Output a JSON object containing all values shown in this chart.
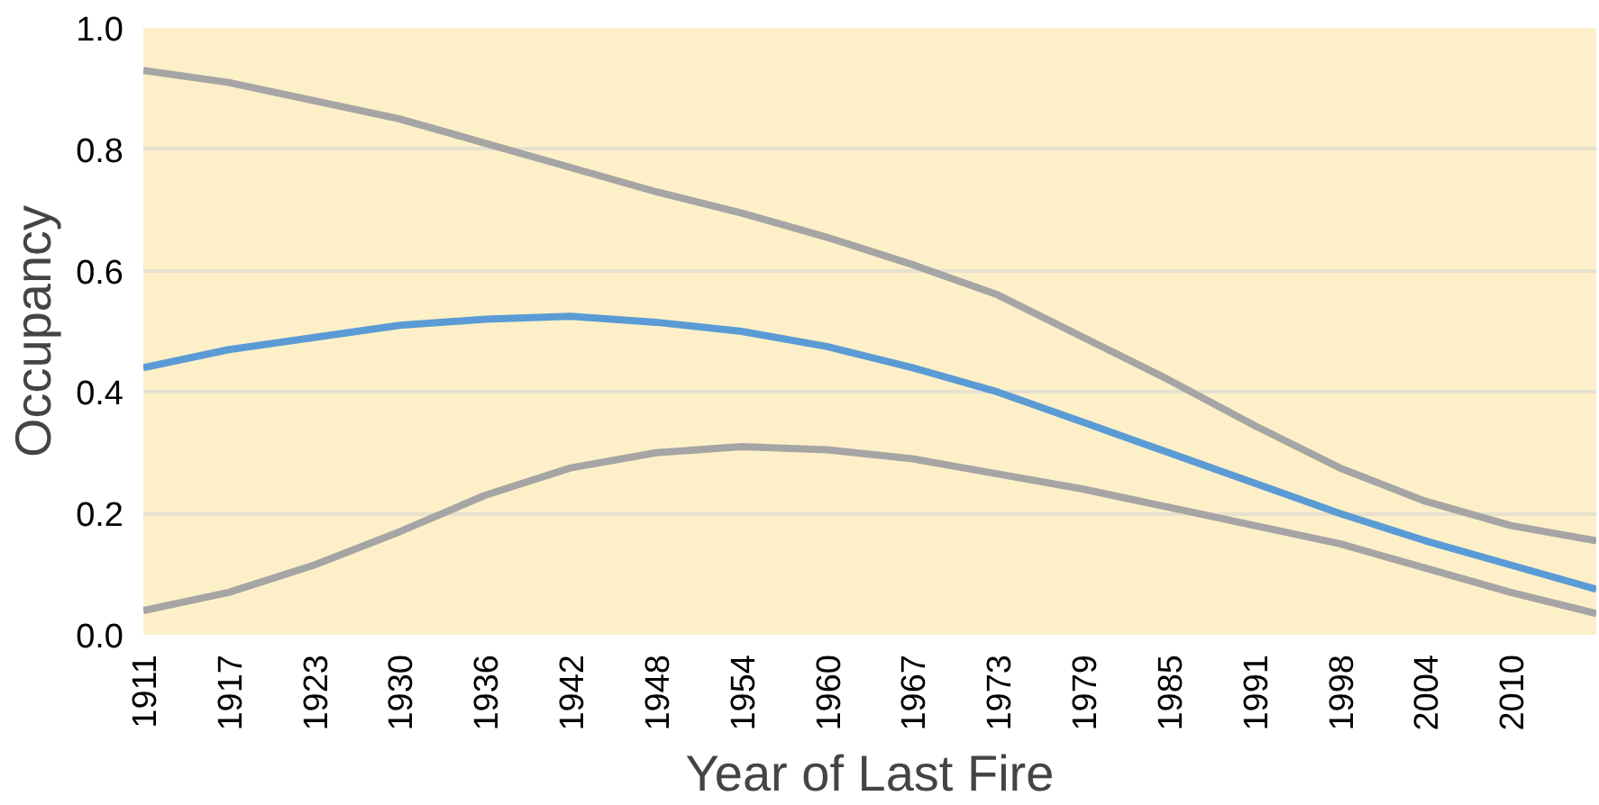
{
  "chart_data": {
    "type": "line",
    "xlabel": "Year of Last Fire",
    "ylabel": "Occupancy",
    "categories": [
      "1911",
      "1917",
      "1923",
      "1930",
      "1936",
      "1942",
      "1948",
      "1954",
      "1960",
      "1967",
      "1973",
      "1979",
      "1985",
      "1991",
      "1998",
      "2004",
      "2010",
      null
    ],
    "series": [
      {
        "color": "#a5a5a5",
        "values": [
          0.93,
          0.91,
          0.88,
          0.85,
          0.81,
          0.77,
          0.73,
          0.695,
          0.655,
          0.61,
          0.56,
          0.49,
          0.42,
          0.345,
          0.275,
          0.22,
          0.18,
          0.155
        ]
      },
      {
        "color": "#a5a5a5",
        "values": [
          0.04,
          0.07,
          0.115,
          0.17,
          0.23,
          0.275,
          0.3,
          0.31,
          0.305,
          0.29,
          0.265,
          0.24,
          0.21,
          0.18,
          0.15,
          0.11,
          0.07,
          0.035
        ]
      },
      {
        "color": "#5b9bd5",
        "values": [
          0.44,
          0.47,
          0.49,
          0.51,
          0.52,
          0.525,
          0.515,
          0.5,
          0.475,
          0.44,
          0.4,
          0.35,
          0.3,
          0.25,
          0.2,
          0.155,
          0.115,
          0.075
        ]
      }
    ],
    "ylim": [
      0,
      1
    ],
    "yticks": [
      {
        "value": 0,
        "label": "0.0"
      },
      {
        "value": 0.2,
        "label": "0.2"
      },
      {
        "value": 0.4,
        "label": "0.4"
      },
      {
        "value": 0.6,
        "label": "0.6"
      },
      {
        "value": 0.8,
        "label": "0.8"
      },
      {
        "value": 1,
        "label": "1.0"
      }
    ],
    "grid": "y",
    "line_style": "solid",
    "marker": "none"
  }
}
